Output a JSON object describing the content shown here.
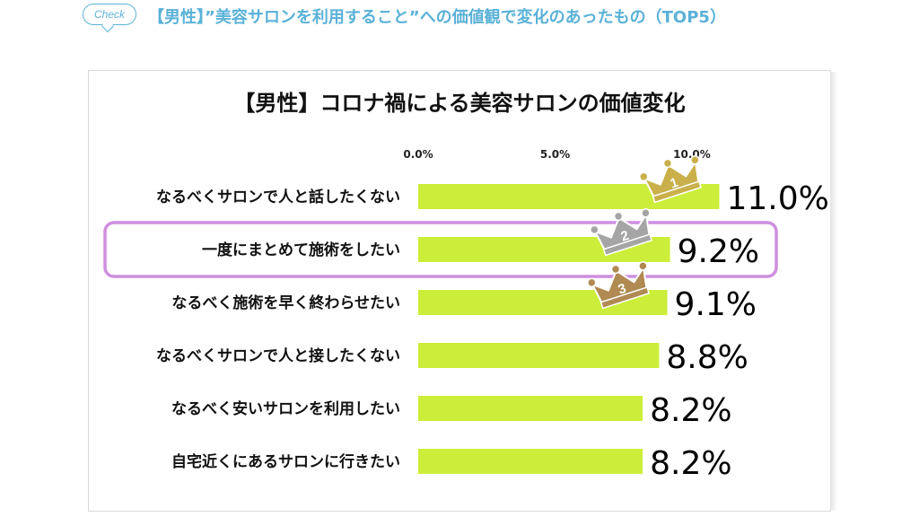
{
  "header": {
    "check_label": "Check",
    "title": "【男性】”美容サロンを利用すること”への価値観で変化のあったもの（TOP5）"
  },
  "chart_data": {
    "type": "bar",
    "orientation": "horizontal",
    "title": "【男性】コロナ禍による美容サロンの価値変化",
    "xlabel": "",
    "ylabel": "",
    "xlim": [
      0,
      10
    ],
    "ticks": [
      0,
      5,
      10
    ],
    "tick_labels": [
      "0.0%",
      "5.0%",
      "10.0%"
    ],
    "grid": false,
    "categories": [
      "なるべくサロンで人と話したくない",
      "一度にまとめて施術をしたい",
      "なるべく施術を早く終わらせたい",
      "なるべくサロンで人と接したくない",
      "なるべく安いサロンを利用したい",
      "自宅近くにあるサロンに行きたい"
    ],
    "values": [
      11.0,
      9.2,
      9.1,
      8.8,
      8.2,
      8.2
    ],
    "value_labels": [
      "11.0%",
      "9.2%",
      "9.1%",
      "8.8%",
      "8.2%",
      "8.2%"
    ],
    "ranks": [
      {
        "index": 0,
        "label": "1",
        "color": "#c9b04a"
      },
      {
        "index": 1,
        "label": "2",
        "color": "#a5a5a5"
      },
      {
        "index": 2,
        "label": "3",
        "color": "#b08a52"
      }
    ],
    "highlight_index": 1,
    "highlight_color": "#cf8ee0",
    "bar_color": "#ccee3a"
  }
}
